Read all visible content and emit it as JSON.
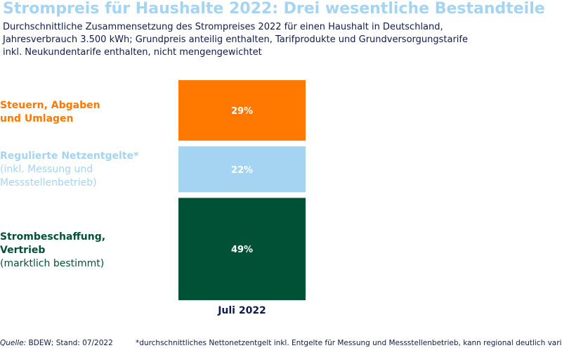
{
  "header": {
    "title": "Strompreis für Haushalte 2022: Drei wesentliche Bestandteile",
    "subtitle_lines": [
      "Durchschnittliche Zusammensetzung des Strompreises 2022 für einen Haushalt in Deutschland,",
      "Jahresverbrauch 3.500 kWh; Grundpreis anteilig enthalten, Tarifprodukte und Grundversorgungstarife",
      "inkl. Neukundentarife enthalten, nicht mengengewichtet"
    ]
  },
  "chart_data": {
    "type": "bar",
    "stacked": true,
    "categories": [
      "Juli 2022"
    ],
    "series": [
      {
        "name": "Steuern, Abgaben und Umlagen",
        "label_lines": [
          "Steuern, Abgaben",
          "und Umlagen"
        ],
        "values": [
          29
        ],
        "value_label": "29%",
        "color": "#ff7800"
      },
      {
        "name": "Regulierte Netzentgelte* (inkl. Messung und Messstellenbetrieb)",
        "label_lines": [
          "Regulierte Netzentgelte*",
          "(inkl. Messung und",
          "Messstellenbetrieb)"
        ],
        "values": [
          22
        ],
        "value_label": "22%",
        "color": "#a4d4f2"
      },
      {
        "name": "Strombeschaffung, Vertrieb (marktlich bestimmt)",
        "label_lines": [
          "Strombeschaffung,",
          "Vertrieb",
          "(marktlich bestimmt)"
        ],
        "values": [
          49
        ],
        "value_label": "49%",
        "color": "#005136"
      }
    ],
    "unit": "%"
  },
  "footer": {
    "source_label": "Quelle:",
    "source_text": " BDEW; Stand: 07/2022",
    "footnote": "*durchschnittliches Nettonetzentgelt inkl. Entgelte für Messung und Messstellenbetrieb, kann regional deutlich variieren"
  }
}
